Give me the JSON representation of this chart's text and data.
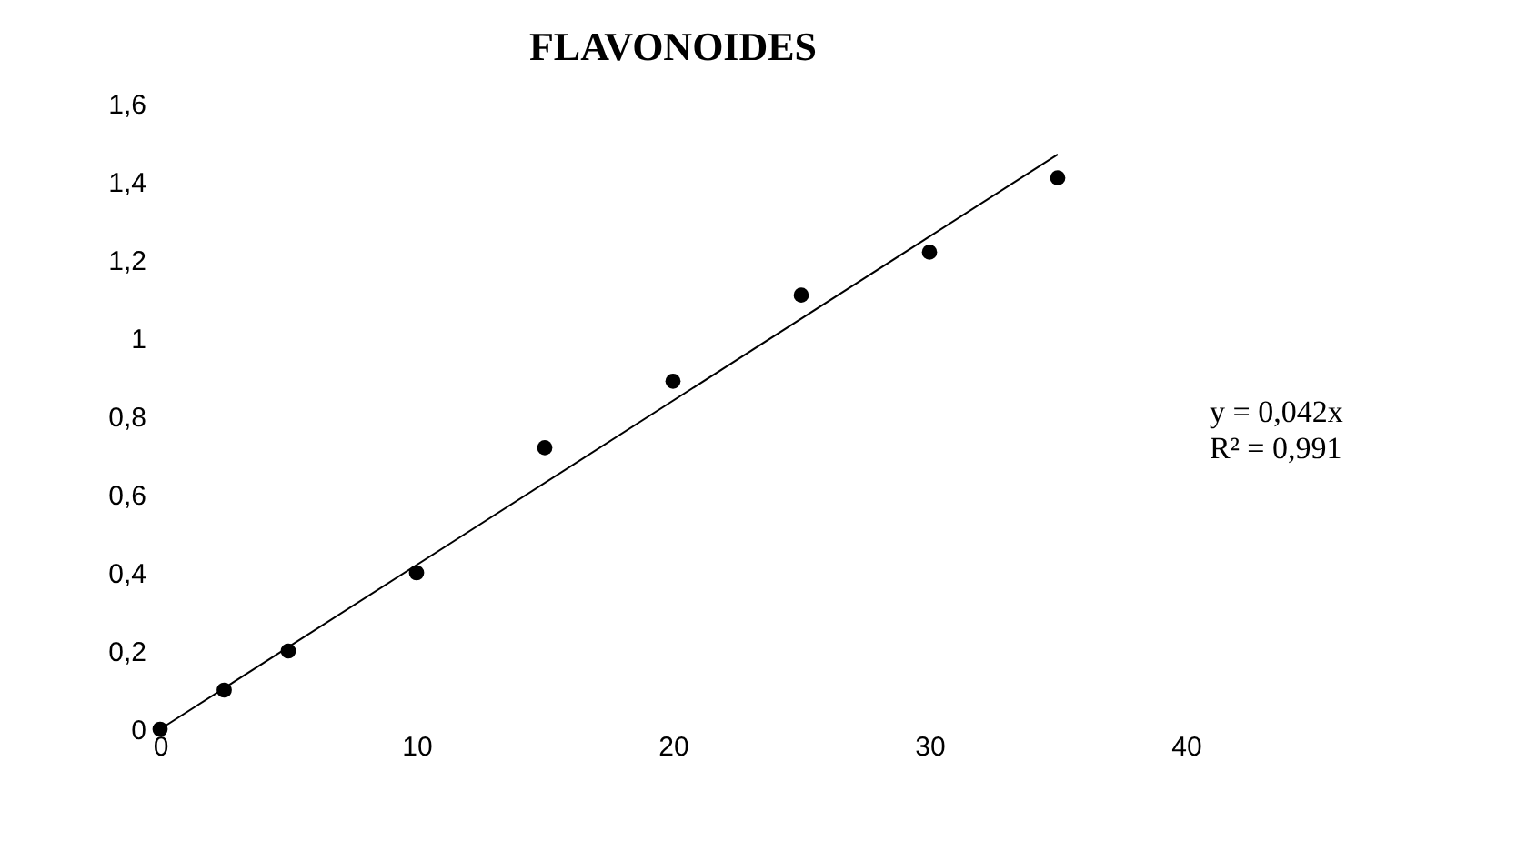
{
  "chart_data": {
    "type": "scatter",
    "title": "FLAVONOIDES",
    "series": [
      {
        "color": "#000000",
        "marker": "circle",
        "x": [
          0,
          2.5,
          5,
          10,
          15,
          20,
          25,
          30,
          35
        ],
        "values": [
          0,
          0.1,
          0.2,
          0.4,
          0.72,
          0.89,
          1.11,
          1.22,
          1.41
        ]
      },
      {
        "type": "line",
        "color": "#000000",
        "marker": "none",
        "x": [
          0,
          35
        ],
        "values": [
          0,
          1.47
        ]
      }
    ],
    "xlim": [
      0,
      40
    ],
    "xticks": [
      0,
      10,
      20,
      30,
      40
    ],
    "ylim": [
      0,
      1.6
    ],
    "yticks": [
      0,
      {
        "value": 0.2,
        "label": "0,2"
      },
      {
        "value": 0.4,
        "label": "0,4"
      },
      {
        "value": 0.6,
        "label": "0,6"
      },
      {
        "value": 0.8,
        "label": "0,8"
      },
      1,
      {
        "value": 1.2,
        "label": "1,2"
      },
      {
        "value": 1.4,
        "label": "1,4"
      },
      {
        "value": 1.6,
        "label": "1,6"
      }
    ],
    "annotations": [
      "y = 0,042x",
      "R² = 0,991"
    ],
    "grid": false
  }
}
